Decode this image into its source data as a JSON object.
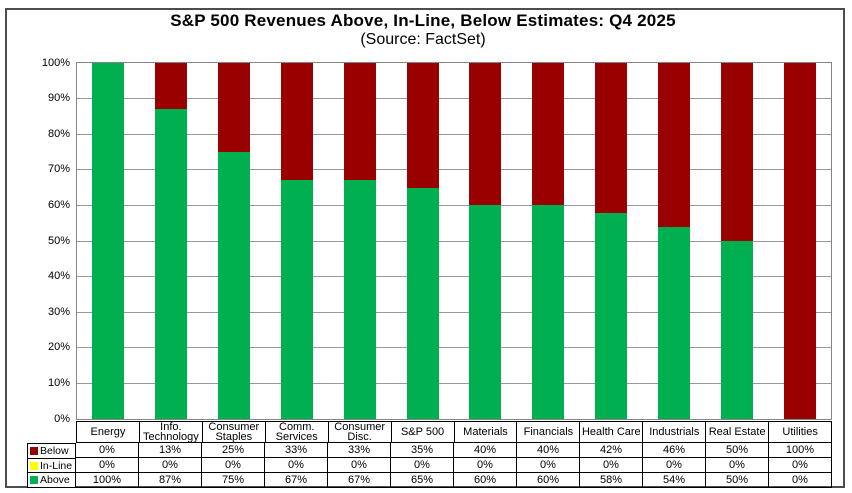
{
  "title": "S&P 500 Revenues Above, In-Line, Below Estimates: Q4 2025",
  "subtitle": "(Source: FactSet)",
  "colors": {
    "above": "#00B050",
    "in_line": "#FFFF00",
    "below": "#990000",
    "gridline": "#999999",
    "plot_border": "#848484",
    "table_border": "#000000"
  },
  "chart_data": {
    "type": "bar",
    "stacked": true,
    "title": "S&P 500 Revenues Above, In-Line, Below Estimates: Q4 2025",
    "subtitle": "(Source: FactSet)",
    "categories": [
      "Energy",
      "Info. Technology",
      "Consumer Staples",
      "Comm. Services",
      "Consumer Disc.",
      "S&P 500",
      "Materials",
      "Financials",
      "Health Care",
      "Industrials",
      "Real Estate",
      "Utilities"
    ],
    "series": [
      {
        "name": "Below",
        "color": "#990000",
        "values": [
          0,
          13,
          25,
          33,
          33,
          35,
          40,
          40,
          42,
          46,
          50,
          100
        ]
      },
      {
        "name": "In-Line",
        "color": "#FFFF00",
        "values": [
          0,
          0,
          0,
          0,
          0,
          0,
          0,
          0,
          0,
          0,
          0,
          0
        ]
      },
      {
        "name": "Above",
        "color": "#00B050",
        "values": [
          100,
          87,
          75,
          67,
          67,
          65,
          60,
          60,
          58,
          54,
          50,
          0
        ]
      }
    ],
    "ylim": [
      0,
      100
    ],
    "y_ticks": [
      "100%",
      "90%",
      "80%",
      "70%",
      "60%",
      "50%",
      "40%",
      "30%",
      "20%",
      "10%",
      "0%"
    ],
    "grid": true,
    "legend_position": "data-table-left",
    "xlabel": "",
    "ylabel": ""
  },
  "table": {
    "rows": [
      {
        "label": "Below",
        "marker_color": "#990000",
        "values": [
          "0%",
          "13%",
          "25%",
          "33%",
          "33%",
          "35%",
          "40%",
          "40%",
          "42%",
          "46%",
          "50%",
          "100%"
        ]
      },
      {
        "label": "In-Line",
        "marker_color": "#FFFF00",
        "values": [
          "0%",
          "0%",
          "0%",
          "0%",
          "0%",
          "0%",
          "0%",
          "0%",
          "0%",
          "0%",
          "0%",
          "0%"
        ]
      },
      {
        "label": "Above",
        "marker_color": "#00B050",
        "values": [
          "100%",
          "87%",
          "75%",
          "67%",
          "67%",
          "65%",
          "60%",
          "60%",
          "58%",
          "54%",
          "50%",
          "0%"
        ]
      }
    ]
  }
}
